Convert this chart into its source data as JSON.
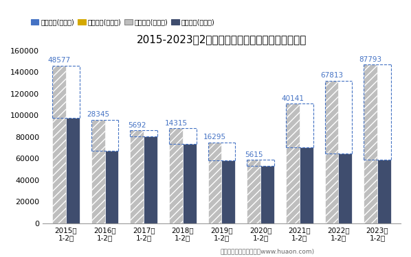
{
  "title": "2015-2023年2月河北省外商投资企业进出口差额图",
  "categories": [
    "2015年\n1-2月",
    "2016年\n1-2月",
    "2017年\n1-2月",
    "2018年\n1-2月",
    "2019年\n1-2月",
    "2020年\n1-2月",
    "2021年\n1-2月",
    "2022年\n1-2月",
    "2023年\n1-2月"
  ],
  "export_values": [
    146000,
    96000,
    86000,
    88000,
    75000,
    59000,
    111000,
    132000,
    147000
  ],
  "import_values": [
    97500,
    67500,
    80500,
    73500,
    58500,
    53500,
    70500,
    64500,
    59000
  ],
  "surplus_values": [
    48577,
    28345,
    5692,
    14315,
    16295,
    5615,
    40141,
    67813,
    87793
  ],
  "annotation_color": "#4472C4",
  "export_color": "#BEBEBE",
  "import_color": "#3F4D6E",
  "export_hatch": "///",
  "legend_labels": [
    "贸易顺差(万美元)",
    "贸易逆差(万美元)",
    "出口总额(万美元)",
    "进口总额(万美元)"
  ],
  "legend_colors": [
    "#4472C4",
    "#D4A800",
    "#BEBEBE",
    "#3F4D6E"
  ],
  "legend_hatches": [
    "///",
    "///",
    null,
    null
  ],
  "legend_edge_colors": [
    "#4472C4",
    "#D4A800",
    "#888888",
    "#3F4D6E"
  ],
  "ylim": [
    0,
    160000
  ],
  "yticks": [
    0,
    20000,
    40000,
    60000,
    80000,
    100000,
    120000,
    140000,
    160000
  ],
  "footer": "制图：华经产业研究院（www.huaon.com)",
  "background_color": "#FFFFFF",
  "bar_width": 0.35,
  "annotation_fontsize": 7.5
}
